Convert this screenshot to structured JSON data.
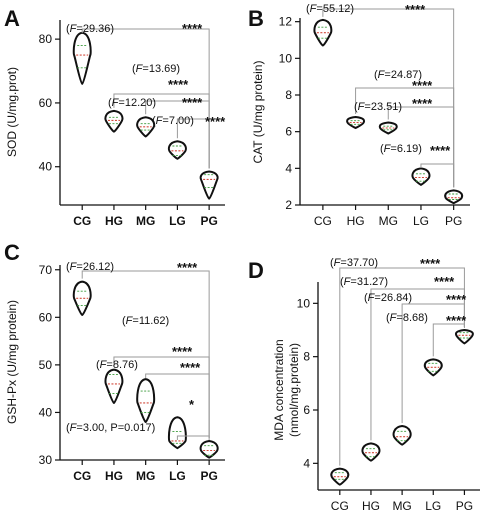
{
  "chart_data": [
    {
      "panel_label": "A",
      "type": "violin",
      "ylabel": "SOD (U/mg.prot)",
      "ylim": [
        28,
        86
      ],
      "yticks": [
        40,
        60,
        80
      ],
      "categories": [
        "CG",
        "HG",
        "MG",
        "LG",
        "PG"
      ],
      "category_bold": true,
      "values": [
        {
          "median": 75,
          "min": 66,
          "max": 82,
          "q1": 71,
          "q3": 78
        },
        {
          "median": 54.5,
          "min": 51,
          "max": 57.5,
          "q1": 53.5,
          "q3": 55.5
        },
        {
          "median": 52.5,
          "min": 49.5,
          "max": 55.5,
          "q1": 51.5,
          "q3": 53.5
        },
        {
          "median": 45,
          "min": 42.5,
          "max": 48,
          "q1": 43.5,
          "q3": 46.5
        },
        {
          "median": 36,
          "min": 30,
          "max": 38.5,
          "q1": 33.5,
          "q3": 37.5
        }
      ],
      "comparisons": [
        {
          "from": 0,
          "to": 4,
          "stat": "(F=29.36)",
          "sig": "****"
        },
        {
          "from": 1,
          "to": 4,
          "stat": "(F=13.69)",
          "sig": "****"
        },
        {
          "from": 2,
          "to": 4,
          "stat": "(F=12.20)",
          "sig": "****"
        },
        {
          "from": 3,
          "to": 4,
          "stat": "(F=7.00)",
          "sig": "****"
        }
      ]
    },
    {
      "panel_label": "B",
      "type": "violin",
      "ylabel": "CAT   (U/mg protein)",
      "ylim": [
        2,
        12.2
      ],
      "yticks": [
        2,
        4,
        6,
        8,
        10,
        12
      ],
      "categories": [
        "CG",
        "HG",
        "MG",
        "LG",
        "PG"
      ],
      "category_bold": false,
      "values": [
        {
          "median": 11.4,
          "min": 10.7,
          "max": 12.1,
          "q1": 11.1,
          "q3": 11.7
        },
        {
          "median": 6.5,
          "min": 6.2,
          "max": 6.8,
          "q1": 6.4,
          "q3": 6.6
        },
        {
          "median": 6.2,
          "min": 5.9,
          "max": 6.5,
          "q1": 6.1,
          "q3": 6.3
        },
        {
          "median": 3.5,
          "min": 3.1,
          "max": 4.0,
          "q1": 3.3,
          "q3": 3.7
        },
        {
          "median": 2.4,
          "min": 2.1,
          "max": 2.8,
          "q1": 2.3,
          "q3": 2.6
        }
      ],
      "comparisons": [
        {
          "from": 0,
          "to": 4,
          "stat": "(F=55.12)",
          "sig": "****"
        },
        {
          "from": 1,
          "to": 4,
          "stat": "(F=24.87)",
          "sig": "****"
        },
        {
          "from": 2,
          "to": 4,
          "stat": "(F=23.51)",
          "sig": "****"
        },
        {
          "from": 3,
          "to": 4,
          "stat": "(F=6.19)",
          "sig": "****"
        }
      ]
    },
    {
      "panel_label": "C",
      "type": "violin",
      "ylabel": "GSH-Px (U/mg protein)",
      "ylim": [
        30,
        71
      ],
      "yticks": [
        30,
        40,
        50,
        60,
        70
      ],
      "categories": [
        "CG",
        "HG",
        "MG",
        "LG",
        "PG"
      ],
      "category_bold": true,
      "values": [
        {
          "median": 64,
          "min": 60.5,
          "max": 67.5,
          "q1": 62.5,
          "q3": 65.5
        },
        {
          "median": 46,
          "min": 42,
          "max": 49,
          "q1": 44,
          "q3": 48
        },
        {
          "median": 42,
          "min": 38,
          "max": 47,
          "q1": 40,
          "q3": 44.5
        },
        {
          "median": 34,
          "min": 32.5,
          "max": 39,
          "q1": 33.5,
          "q3": 36
        },
        {
          "median": 32,
          "min": 30.5,
          "max": 34,
          "q1": 31,
          "q3": 33
        }
      ],
      "comparisons": [
        {
          "from": 0,
          "to": 4,
          "stat": "(F=26.12)",
          "sig": "****"
        },
        {
          "from": 1,
          "to": 4,
          "stat": "(F=11.62)",
          "sig": "****"
        },
        {
          "from": 2,
          "to": 4,
          "stat": "(F=8.76)",
          "sig": "****"
        },
        {
          "from": 3,
          "to": 4,
          "stat": "(F=3.00, P=0.017)",
          "sig": "*"
        }
      ]
    },
    {
      "panel_label": "D",
      "type": "violin",
      "ylabel": "MDA concentration (nmol/mg.protein)",
      "ylabel_lines": [
        "MDA concentration",
        "(nmol/mg.protein)"
      ],
      "ylim": [
        3,
        10.8
      ],
      "yticks": [
        4,
        6,
        8,
        10
      ],
      "categories": [
        "CG",
        "HG",
        "MG",
        "LG",
        "PG"
      ],
      "category_bold": false,
      "values": [
        {
          "median": 3.5,
          "min": 3.2,
          "max": 3.8,
          "q1": 3.4,
          "q3": 3.65
        },
        {
          "median": 4.4,
          "min": 4.1,
          "max": 4.75,
          "q1": 4.25,
          "q3": 4.55
        },
        {
          "median": 5.0,
          "min": 4.7,
          "max": 5.4,
          "q1": 4.85,
          "q3": 5.2
        },
        {
          "median": 7.6,
          "min": 7.3,
          "max": 7.9,
          "q1": 7.45,
          "q3": 7.75
        },
        {
          "median": 8.8,
          "min": 8.5,
          "max": 9.0,
          "q1": 8.7,
          "q3": 8.9
        }
      ],
      "comparisons": [
        {
          "from": 0,
          "to": 4,
          "stat": "(F=37.70)",
          "sig": "****"
        },
        {
          "from": 1,
          "to": 4,
          "stat": "(F=31.27)",
          "sig": "****"
        },
        {
          "from": 2,
          "to": 4,
          "stat": "(F=26.84)",
          "sig": "****"
        },
        {
          "from": 3,
          "to": 4,
          "stat": "(F=8.68)",
          "sig": "****"
        }
      ]
    }
  ]
}
